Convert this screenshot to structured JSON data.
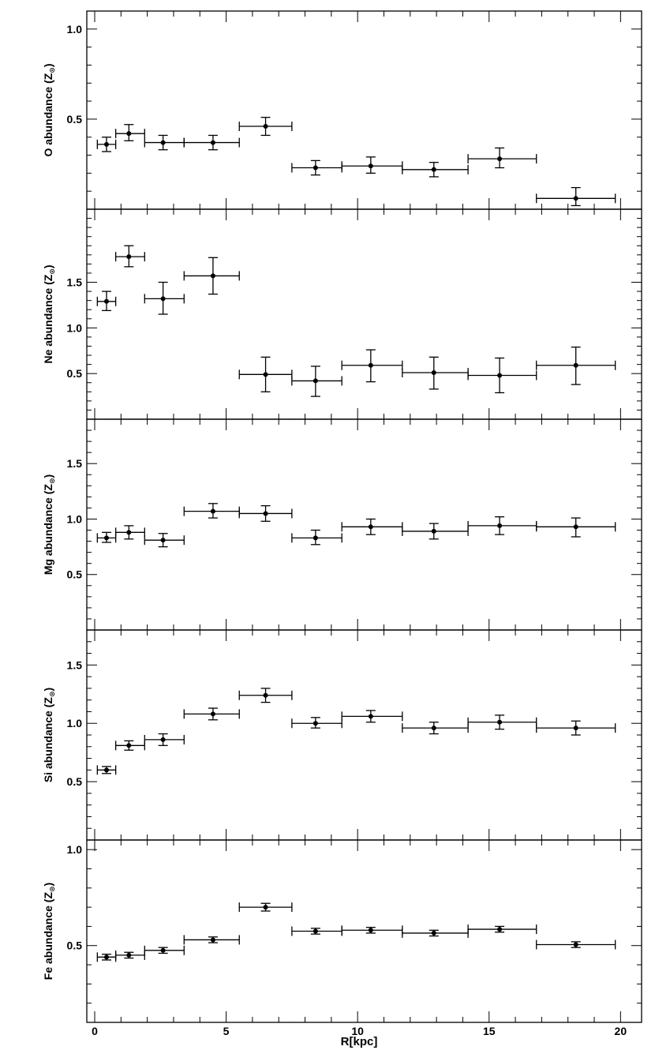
{
  "chart_data": {
    "type": "scatter",
    "x_axis": {
      "label": "R[kpc]",
      "range": [
        -0.3,
        20.8
      ],
      "major_ticks": [
        0,
        5,
        10,
        15,
        20
      ],
      "tick_labels": [
        "0",
        "5",
        "10",
        "15",
        "20"
      ],
      "minor_step": 1
    },
    "panels": [
      {
        "element": "O",
        "ylabel": "O abundance (Z",
        "ylabel_symbol": "⊙",
        "ylabel_close": ")",
        "ylim": [
          0.0,
          1.1
        ],
        "major_ticks": [
          0.5,
          1.0
        ],
        "tick_labels": [
          "0.5",
          "1.0"
        ],
        "minor_step": 0.1,
        "points": [
          {
            "x": 0.45,
            "xlo": 0.1,
            "xhi": 0.8,
            "y": 0.36,
            "ylo": 0.32,
            "yhi": 0.4
          },
          {
            "x": 1.3,
            "xlo": 0.8,
            "xhi": 1.9,
            "y": 0.42,
            "ylo": 0.38,
            "yhi": 0.47
          },
          {
            "x": 2.6,
            "xlo": 1.9,
            "xhi": 3.4,
            "y": 0.37,
            "ylo": 0.33,
            "yhi": 0.41
          },
          {
            "x": 4.5,
            "xlo": 3.4,
            "xhi": 5.5,
            "y": 0.37,
            "ylo": 0.33,
            "yhi": 0.41
          },
          {
            "x": 6.5,
            "xlo": 5.5,
            "xhi": 7.5,
            "y": 0.46,
            "ylo": 0.41,
            "yhi": 0.51
          },
          {
            "x": 8.4,
            "xlo": 7.5,
            "xhi": 9.4,
            "y": 0.23,
            "ylo": 0.19,
            "yhi": 0.27
          },
          {
            "x": 10.5,
            "xlo": 9.4,
            "xhi": 11.7,
            "y": 0.24,
            "ylo": 0.2,
            "yhi": 0.29
          },
          {
            "x": 12.9,
            "xlo": 11.7,
            "xhi": 14.2,
            "y": 0.22,
            "ylo": 0.18,
            "yhi": 0.26
          },
          {
            "x": 15.4,
            "xlo": 14.2,
            "xhi": 16.8,
            "y": 0.28,
            "ylo": 0.23,
            "yhi": 0.34
          },
          {
            "x": 18.3,
            "xlo": 16.8,
            "xhi": 19.8,
            "y": 0.06,
            "ylo": 0.02,
            "yhi": 0.12
          }
        ]
      },
      {
        "element": "Ne",
        "ylabel": "Ne abundance (Z",
        "ylabel_symbol": "⊙",
        "ylabel_close": ")",
        "ylim": [
          0.0,
          2.3
        ],
        "major_ticks": [
          0.5,
          1.0,
          1.5
        ],
        "tick_labels": [
          "0.5",
          "1.0",
          "1.5"
        ],
        "minor_step": 0.1,
        "points": [
          {
            "x": 0.45,
            "xlo": 0.1,
            "xhi": 0.8,
            "y": 1.29,
            "ylo": 1.19,
            "yhi": 1.4
          },
          {
            "x": 1.3,
            "xlo": 0.8,
            "xhi": 1.9,
            "y": 1.78,
            "ylo": 1.67,
            "yhi": 1.9
          },
          {
            "x": 2.6,
            "xlo": 1.9,
            "xhi": 3.4,
            "y": 1.32,
            "ylo": 1.15,
            "yhi": 1.5
          },
          {
            "x": 4.5,
            "xlo": 3.4,
            "xhi": 5.5,
            "y": 1.57,
            "ylo": 1.37,
            "yhi": 1.77
          },
          {
            "x": 6.5,
            "xlo": 5.5,
            "xhi": 7.5,
            "y": 0.49,
            "ylo": 0.3,
            "yhi": 0.68
          },
          {
            "x": 8.4,
            "xlo": 7.5,
            "xhi": 9.4,
            "y": 0.42,
            "ylo": 0.25,
            "yhi": 0.58
          },
          {
            "x": 10.5,
            "xlo": 9.4,
            "xhi": 11.7,
            "y": 0.59,
            "ylo": 0.41,
            "yhi": 0.76
          },
          {
            "x": 12.9,
            "xlo": 11.7,
            "xhi": 14.2,
            "y": 0.51,
            "ylo": 0.33,
            "yhi": 0.68
          },
          {
            "x": 15.4,
            "xlo": 14.2,
            "xhi": 16.8,
            "y": 0.48,
            "ylo": 0.29,
            "yhi": 0.67
          },
          {
            "x": 18.3,
            "xlo": 16.8,
            "xhi": 19.8,
            "y": 0.59,
            "ylo": 0.38,
            "yhi": 0.79
          }
        ]
      },
      {
        "element": "Mg",
        "ylabel": "Mg abundance (Z",
        "ylabel_symbol": "⊙",
        "ylabel_close": ")",
        "ylim": [
          0.0,
          1.9
        ],
        "major_ticks": [
          0.5,
          1.0,
          1.5
        ],
        "tick_labels": [
          "0.5",
          "1.0",
          "1.5"
        ],
        "minor_step": 0.1,
        "points": [
          {
            "x": 0.45,
            "xlo": 0.1,
            "xhi": 0.8,
            "y": 0.83,
            "ylo": 0.79,
            "yhi": 0.88
          },
          {
            "x": 1.3,
            "xlo": 0.8,
            "xhi": 1.9,
            "y": 0.88,
            "ylo": 0.82,
            "yhi": 0.94
          },
          {
            "x": 2.6,
            "xlo": 1.9,
            "xhi": 3.4,
            "y": 0.81,
            "ylo": 0.75,
            "yhi": 0.87
          },
          {
            "x": 4.5,
            "xlo": 3.4,
            "xhi": 5.5,
            "y": 1.07,
            "ylo": 1.01,
            "yhi": 1.14
          },
          {
            "x": 6.5,
            "xlo": 5.5,
            "xhi": 7.5,
            "y": 1.05,
            "ylo": 0.98,
            "yhi": 1.12
          },
          {
            "x": 8.4,
            "xlo": 7.5,
            "xhi": 9.4,
            "y": 0.83,
            "ylo": 0.77,
            "yhi": 0.9
          },
          {
            "x": 10.5,
            "xlo": 9.4,
            "xhi": 11.7,
            "y": 0.93,
            "ylo": 0.86,
            "yhi": 1.0
          },
          {
            "x": 12.9,
            "xlo": 11.7,
            "xhi": 14.2,
            "y": 0.89,
            "ylo": 0.82,
            "yhi": 0.96
          },
          {
            "x": 15.4,
            "xlo": 14.2,
            "xhi": 16.8,
            "y": 0.94,
            "ylo": 0.86,
            "yhi": 1.02
          },
          {
            "x": 18.3,
            "xlo": 16.8,
            "xhi": 19.8,
            "y": 0.93,
            "ylo": 0.84,
            "yhi": 1.01
          }
        ]
      },
      {
        "element": "Si",
        "ylabel": "Si abundance (Z",
        "ylabel_symbol": "⊙",
        "ylabel_close": ")",
        "ylim": [
          0.0,
          1.8
        ],
        "major_ticks": [
          0.5,
          1.0,
          1.5
        ],
        "tick_labels": [
          "0.5",
          "1.0",
          "1.5"
        ],
        "minor_step": 0.1,
        "points": [
          {
            "x": 0.45,
            "xlo": 0.1,
            "xhi": 0.8,
            "y": 0.6,
            "ylo": 0.57,
            "yhi": 0.63
          },
          {
            "x": 1.3,
            "xlo": 0.8,
            "xhi": 1.9,
            "y": 0.81,
            "ylo": 0.77,
            "yhi": 0.85
          },
          {
            "x": 2.6,
            "xlo": 1.9,
            "xhi": 3.4,
            "y": 0.86,
            "ylo": 0.81,
            "yhi": 0.91
          },
          {
            "x": 4.5,
            "xlo": 3.4,
            "xhi": 5.5,
            "y": 1.08,
            "ylo": 1.03,
            "yhi": 1.13
          },
          {
            "x": 6.5,
            "xlo": 5.5,
            "xhi": 7.5,
            "y": 1.24,
            "ylo": 1.18,
            "yhi": 1.3
          },
          {
            "x": 8.4,
            "xlo": 7.5,
            "xhi": 9.4,
            "y": 1.0,
            "ylo": 0.96,
            "yhi": 1.05
          },
          {
            "x": 10.5,
            "xlo": 9.4,
            "xhi": 11.7,
            "y": 1.06,
            "ylo": 1.01,
            "yhi": 1.11
          },
          {
            "x": 12.9,
            "xlo": 11.7,
            "xhi": 14.2,
            "y": 0.96,
            "ylo": 0.91,
            "yhi": 1.01
          },
          {
            "x": 15.4,
            "xlo": 14.2,
            "xhi": 16.8,
            "y": 1.01,
            "ylo": 0.95,
            "yhi": 1.07
          },
          {
            "x": 18.3,
            "xlo": 16.8,
            "xhi": 19.8,
            "y": 0.96,
            "ylo": 0.9,
            "yhi": 1.02
          }
        ]
      },
      {
        "element": "Fe",
        "ylabel": "Fe abundance (Z",
        "ylabel_symbol": "⊙",
        "ylabel_close": ")",
        "ylim": [
          0.1,
          1.05
        ],
        "major_ticks": [
          0.5,
          1.0
        ],
        "tick_labels": [
          "0.5",
          "1.0"
        ],
        "minor_step": 0.1,
        "points": [
          {
            "x": 0.45,
            "xlo": 0.1,
            "xhi": 0.8,
            "y": 0.44,
            "ylo": 0.425,
            "yhi": 0.455
          },
          {
            "x": 1.3,
            "xlo": 0.8,
            "xhi": 1.9,
            "y": 0.45,
            "ylo": 0.435,
            "yhi": 0.465
          },
          {
            "x": 2.6,
            "xlo": 1.9,
            "xhi": 3.4,
            "y": 0.475,
            "ylo": 0.46,
            "yhi": 0.49
          },
          {
            "x": 4.5,
            "xlo": 3.4,
            "xhi": 5.5,
            "y": 0.53,
            "ylo": 0.515,
            "yhi": 0.545
          },
          {
            "x": 6.5,
            "xlo": 5.5,
            "xhi": 7.5,
            "y": 0.7,
            "ylo": 0.68,
            "yhi": 0.72
          },
          {
            "x": 8.4,
            "xlo": 7.5,
            "xhi": 9.4,
            "y": 0.575,
            "ylo": 0.56,
            "yhi": 0.59
          },
          {
            "x": 10.5,
            "xlo": 9.4,
            "xhi": 11.7,
            "y": 0.58,
            "ylo": 0.565,
            "yhi": 0.595
          },
          {
            "x": 12.9,
            "xlo": 11.7,
            "xhi": 14.2,
            "y": 0.565,
            "ylo": 0.55,
            "yhi": 0.58
          },
          {
            "x": 15.4,
            "xlo": 14.2,
            "xhi": 16.8,
            "y": 0.585,
            "ylo": 0.57,
            "yhi": 0.6
          },
          {
            "x": 18.3,
            "xlo": 16.8,
            "xhi": 19.8,
            "y": 0.505,
            "ylo": 0.49,
            "yhi": 0.52
          }
        ]
      }
    ]
  }
}
